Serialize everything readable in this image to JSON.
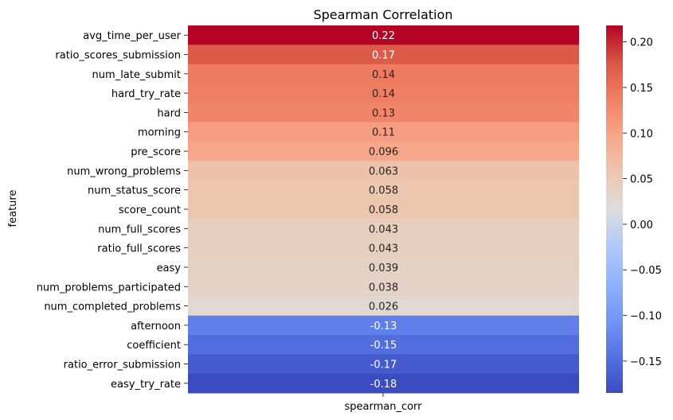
{
  "chart_data": {
    "type": "heatmap",
    "title": "Spearman Correlation",
    "ylabel": "feature",
    "column": "spearman_corr",
    "rows": [
      {
        "feature": "avg_time_per_user",
        "value": 0.218,
        "label": "0.22"
      },
      {
        "feature": "ratio_scores_submission",
        "value": 0.172,
        "label": "0.17"
      },
      {
        "feature": "num_late_submit",
        "value": 0.142,
        "label": "0.14"
      },
      {
        "feature": "hard_try_rate",
        "value": 0.138,
        "label": "0.14"
      },
      {
        "feature": "hard",
        "value": 0.132,
        "label": "0.13"
      },
      {
        "feature": "morning",
        "value": 0.107,
        "label": "0.11"
      },
      {
        "feature": "pre_score",
        "value": 0.096,
        "label": "0.096"
      },
      {
        "feature": "num_wrong_problems",
        "value": 0.063,
        "label": "0.063"
      },
      {
        "feature": "num_status_score",
        "value": 0.058,
        "label": "0.058"
      },
      {
        "feature": "score_count",
        "value": 0.058,
        "label": "0.058"
      },
      {
        "feature": "num_full_scores",
        "value": 0.043,
        "label": "0.043"
      },
      {
        "feature": "ratio_full_scores",
        "value": 0.043,
        "label": "0.043"
      },
      {
        "feature": "easy",
        "value": 0.039,
        "label": "0.039"
      },
      {
        "feature": "num_problems_participated",
        "value": 0.038,
        "label": "0.038"
      },
      {
        "feature": "num_completed_problems",
        "value": 0.026,
        "label": "0.026"
      },
      {
        "feature": "afternoon",
        "value": -0.13,
        "label": "-0.13"
      },
      {
        "feature": "coefficient",
        "value": -0.15,
        "label": "-0.15"
      },
      {
        "feature": "ratio_error_submission",
        "value": -0.17,
        "label": "-0.17"
      },
      {
        "feature": "easy_try_rate",
        "value": -0.185,
        "label": "-0.18"
      }
    ],
    "colormap": "coolwarm",
    "vmin": -0.185,
    "vmax": 0.218,
    "colorbar_ticks": [
      {
        "value": 0.2,
        "label": "0.20"
      },
      {
        "value": 0.15,
        "label": "0.15"
      },
      {
        "value": 0.1,
        "label": "0.10"
      },
      {
        "value": 0.05,
        "label": "0.05"
      },
      {
        "value": 0.0,
        "label": "0.00"
      },
      {
        "value": -0.05,
        "label": "−0.05"
      },
      {
        "value": -0.1,
        "label": "−0.10"
      },
      {
        "value": -0.15,
        "label": "−0.15"
      }
    ],
    "grid": false,
    "legend": "colorbar-right"
  }
}
